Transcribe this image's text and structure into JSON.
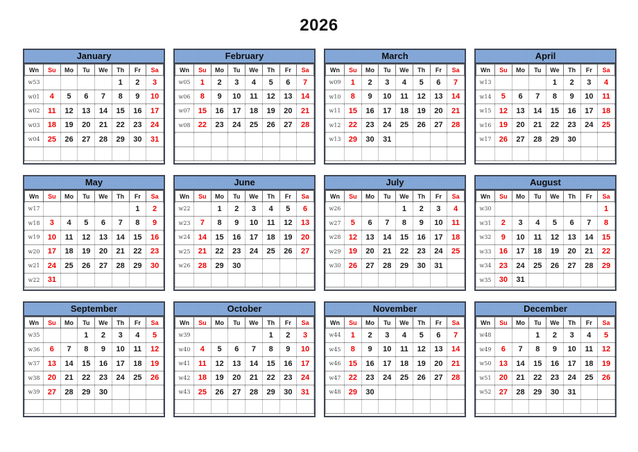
{
  "title": "2026",
  "colors": {
    "header_bg": "#81a5d6",
    "weekend_text": "#ee0000",
    "weekday_text": "#1a1a1a",
    "week_number_text": "#4c4c4c",
    "outer_border": "#3f4654"
  },
  "week_col_label": "Wn",
  "day_headers": [
    "Wn",
    "Su",
    "Mo",
    "Tu",
    "We",
    "Th",
    "Fr",
    "Sa"
  ],
  "weekend_headers": [
    "Su",
    "Sa"
  ],
  "months": [
    {
      "name": "January",
      "weeks": [
        {
          "wn": "w53",
          "days": [
            "",
            "",
            "",
            "",
            "1",
            "2",
            "3"
          ]
        },
        {
          "wn": "w01",
          "days": [
            "4",
            "5",
            "6",
            "7",
            "8",
            "9",
            "10"
          ]
        },
        {
          "wn": "w02",
          "days": [
            "11",
            "12",
            "13",
            "14",
            "15",
            "16",
            "17"
          ]
        },
        {
          "wn": "w03",
          "days": [
            "18",
            "19",
            "20",
            "21",
            "22",
            "23",
            "24"
          ]
        },
        {
          "wn": "w04",
          "days": [
            "25",
            "26",
            "27",
            "28",
            "29",
            "30",
            "31"
          ]
        },
        {
          "wn": "",
          "days": [
            "",
            "",
            "",
            "",
            "",
            "",
            ""
          ]
        }
      ]
    },
    {
      "name": "February",
      "weeks": [
        {
          "wn": "w05",
          "days": [
            "1",
            "2",
            "3",
            "4",
            "5",
            "6",
            "7"
          ]
        },
        {
          "wn": "w06",
          "days": [
            "8",
            "9",
            "10",
            "11",
            "12",
            "13",
            "14"
          ]
        },
        {
          "wn": "w07",
          "days": [
            "15",
            "16",
            "17",
            "18",
            "19",
            "20",
            "21"
          ]
        },
        {
          "wn": "w08",
          "days": [
            "22",
            "23",
            "24",
            "25",
            "26",
            "27",
            "28"
          ]
        },
        {
          "wn": "",
          "days": [
            "",
            "",
            "",
            "",
            "",
            "",
            ""
          ]
        },
        {
          "wn": "",
          "days": [
            "",
            "",
            "",
            "",
            "",
            "",
            ""
          ]
        }
      ]
    },
    {
      "name": "March",
      "weeks": [
        {
          "wn": "w09",
          "days": [
            "1",
            "2",
            "3",
            "4",
            "5",
            "6",
            "7"
          ]
        },
        {
          "wn": "w10",
          "days": [
            "8",
            "9",
            "10",
            "11",
            "12",
            "13",
            "14"
          ]
        },
        {
          "wn": "w11",
          "days": [
            "15",
            "16",
            "17",
            "18",
            "19",
            "20",
            "21"
          ]
        },
        {
          "wn": "w12",
          "days": [
            "22",
            "23",
            "24",
            "25",
            "26",
            "27",
            "28"
          ]
        },
        {
          "wn": "w13",
          "days": [
            "29",
            "30",
            "31",
            "",
            "",
            "",
            ""
          ]
        },
        {
          "wn": "",
          "days": [
            "",
            "",
            "",
            "",
            "",
            "",
            ""
          ]
        }
      ]
    },
    {
      "name": "April",
      "weeks": [
        {
          "wn": "w13",
          "days": [
            "",
            "",
            "",
            "1",
            "2",
            "3",
            "4"
          ]
        },
        {
          "wn": "w14",
          "days": [
            "5",
            "6",
            "7",
            "8",
            "9",
            "10",
            "11"
          ]
        },
        {
          "wn": "w15",
          "days": [
            "12",
            "13",
            "14",
            "15",
            "16",
            "17",
            "18"
          ]
        },
        {
          "wn": "w16",
          "days": [
            "19",
            "20",
            "21",
            "22",
            "23",
            "24",
            "25"
          ]
        },
        {
          "wn": "w17",
          "days": [
            "26",
            "27",
            "28",
            "29",
            "30",
            "",
            ""
          ]
        },
        {
          "wn": "",
          "days": [
            "",
            "",
            "",
            "",
            "",
            "",
            ""
          ]
        }
      ]
    },
    {
      "name": "May",
      "weeks": [
        {
          "wn": "w17",
          "days": [
            "",
            "",
            "",
            "",
            "",
            "1",
            "2"
          ]
        },
        {
          "wn": "w18",
          "days": [
            "3",
            "4",
            "5",
            "6",
            "7",
            "8",
            "9"
          ]
        },
        {
          "wn": "w19",
          "days": [
            "10",
            "11",
            "12",
            "13",
            "14",
            "15",
            "16"
          ]
        },
        {
          "wn": "w20",
          "days": [
            "17",
            "18",
            "19",
            "20",
            "21",
            "22",
            "23"
          ]
        },
        {
          "wn": "w21",
          "days": [
            "24",
            "25",
            "26",
            "27",
            "28",
            "29",
            "30"
          ]
        },
        {
          "wn": "w22",
          "days": [
            "31",
            "",
            "",
            "",
            "",
            "",
            ""
          ]
        }
      ]
    },
    {
      "name": "June",
      "weeks": [
        {
          "wn": "w22",
          "days": [
            "",
            "1",
            "2",
            "3",
            "4",
            "5",
            "6"
          ]
        },
        {
          "wn": "w23",
          "days": [
            "7",
            "8",
            "9",
            "10",
            "11",
            "12",
            "13"
          ]
        },
        {
          "wn": "w24",
          "days": [
            "14",
            "15",
            "16",
            "17",
            "18",
            "19",
            "20"
          ]
        },
        {
          "wn": "w25",
          "days": [
            "21",
            "22",
            "23",
            "24",
            "25",
            "26",
            "27"
          ]
        },
        {
          "wn": "w26",
          "days": [
            "28",
            "29",
            "30",
            "",
            "",
            "",
            ""
          ]
        },
        {
          "wn": "",
          "days": [
            "",
            "",
            "",
            "",
            "",
            "",
            ""
          ]
        }
      ]
    },
    {
      "name": "July",
      "weeks": [
        {
          "wn": "w26",
          "days": [
            "",
            "",
            "",
            "1",
            "2",
            "3",
            "4"
          ]
        },
        {
          "wn": "w27",
          "days": [
            "5",
            "6",
            "7",
            "8",
            "9",
            "10",
            "11"
          ]
        },
        {
          "wn": "w28",
          "days": [
            "12",
            "13",
            "14",
            "15",
            "16",
            "17",
            "18"
          ]
        },
        {
          "wn": "w29",
          "days": [
            "19",
            "20",
            "21",
            "22",
            "23",
            "24",
            "25"
          ]
        },
        {
          "wn": "w30",
          "days": [
            "26",
            "27",
            "28",
            "29",
            "30",
            "31",
            ""
          ]
        },
        {
          "wn": "",
          "days": [
            "",
            "",
            "",
            "",
            "",
            "",
            ""
          ]
        }
      ]
    },
    {
      "name": "August",
      "weeks": [
        {
          "wn": "w30",
          "days": [
            "",
            "",
            "",
            "",
            "",
            "",
            "1"
          ]
        },
        {
          "wn": "w31",
          "days": [
            "2",
            "3",
            "4",
            "5",
            "6",
            "7",
            "8"
          ]
        },
        {
          "wn": "w32",
          "days": [
            "9",
            "10",
            "11",
            "12",
            "13",
            "14",
            "15"
          ]
        },
        {
          "wn": "w33",
          "days": [
            "16",
            "17",
            "18",
            "19",
            "20",
            "21",
            "22"
          ]
        },
        {
          "wn": "w34",
          "days": [
            "23",
            "24",
            "25",
            "26",
            "27",
            "28",
            "29"
          ]
        },
        {
          "wn": "w35",
          "days": [
            "30",
            "31",
            "",
            "",
            "",
            "",
            ""
          ]
        }
      ]
    },
    {
      "name": "September",
      "weeks": [
        {
          "wn": "w35",
          "days": [
            "",
            "",
            "1",
            "2",
            "3",
            "4",
            "5"
          ]
        },
        {
          "wn": "w36",
          "days": [
            "6",
            "7",
            "8",
            "9",
            "10",
            "11",
            "12"
          ]
        },
        {
          "wn": "w37",
          "days": [
            "13",
            "14",
            "15",
            "16",
            "17",
            "18",
            "19"
          ]
        },
        {
          "wn": "w38",
          "days": [
            "20",
            "21",
            "22",
            "23",
            "24",
            "25",
            "26"
          ]
        },
        {
          "wn": "w39",
          "days": [
            "27",
            "28",
            "29",
            "30",
            "",
            "",
            ""
          ]
        },
        {
          "wn": "",
          "days": [
            "",
            "",
            "",
            "",
            "",
            "",
            ""
          ]
        }
      ]
    },
    {
      "name": "October",
      "weeks": [
        {
          "wn": "w39",
          "days": [
            "",
            "",
            "",
            "",
            "1",
            "2",
            "3"
          ]
        },
        {
          "wn": "w40",
          "days": [
            "4",
            "5",
            "6",
            "7",
            "8",
            "9",
            "10"
          ]
        },
        {
          "wn": "w41",
          "days": [
            "11",
            "12",
            "13",
            "14",
            "15",
            "16",
            "17"
          ]
        },
        {
          "wn": "w42",
          "days": [
            "18",
            "19",
            "20",
            "21",
            "22",
            "23",
            "24"
          ]
        },
        {
          "wn": "w43",
          "days": [
            "25",
            "26",
            "27",
            "28",
            "29",
            "30",
            "31"
          ]
        },
        {
          "wn": "",
          "days": [
            "",
            "",
            "",
            "",
            "",
            "",
            ""
          ]
        }
      ]
    },
    {
      "name": "November",
      "weeks": [
        {
          "wn": "w44",
          "days": [
            "1",
            "2",
            "3",
            "4",
            "5",
            "6",
            "7"
          ]
        },
        {
          "wn": "w45",
          "days": [
            "8",
            "9",
            "10",
            "11",
            "12",
            "13",
            "14"
          ]
        },
        {
          "wn": "w46",
          "days": [
            "15",
            "16",
            "17",
            "18",
            "19",
            "20",
            "21"
          ]
        },
        {
          "wn": "w47",
          "days": [
            "22",
            "23",
            "24",
            "25",
            "26",
            "27",
            "28"
          ]
        },
        {
          "wn": "w48",
          "days": [
            "29",
            "30",
            "",
            "",
            "",
            "",
            ""
          ]
        },
        {
          "wn": "",
          "days": [
            "",
            "",
            "",
            "",
            "",
            "",
            ""
          ]
        }
      ]
    },
    {
      "name": "December",
      "weeks": [
        {
          "wn": "w48",
          "days": [
            "",
            "",
            "1",
            "2",
            "3",
            "4",
            "5"
          ]
        },
        {
          "wn": "w49",
          "days": [
            "6",
            "7",
            "8",
            "9",
            "10",
            "11",
            "12"
          ]
        },
        {
          "wn": "w50",
          "days": [
            "13",
            "14",
            "15",
            "16",
            "17",
            "18",
            "19"
          ]
        },
        {
          "wn": "w51",
          "days": [
            "20",
            "21",
            "22",
            "23",
            "24",
            "25",
            "26"
          ]
        },
        {
          "wn": "w52",
          "days": [
            "27",
            "28",
            "29",
            "30",
            "31",
            "",
            ""
          ]
        },
        {
          "wn": "",
          "days": [
            "",
            "",
            "",
            "",
            "",
            "",
            ""
          ]
        }
      ]
    }
  ]
}
